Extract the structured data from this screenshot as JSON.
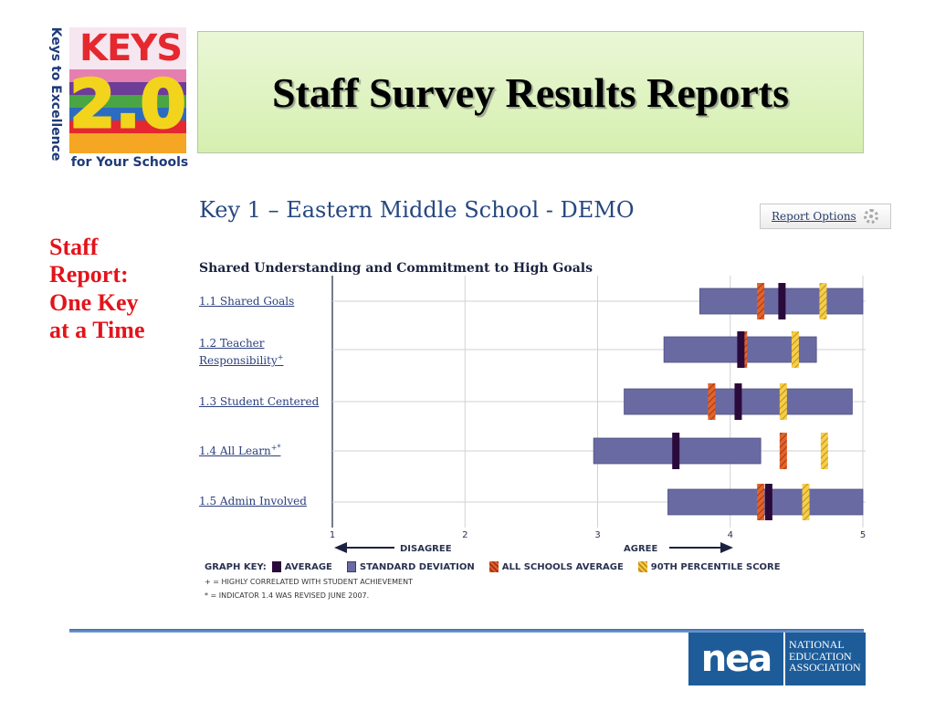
{
  "logo": {
    "side_text": "Keys to Excellence",
    "top_text": "KEYS",
    "big_text": "2.0",
    "bottom_text": "for Your Schools"
  },
  "title": "Staff Survey Results Reports",
  "side_caption": [
    "Staff",
    "Report:",
    "One Key",
    "at a Time"
  ],
  "report": {
    "title": "Key 1 – Eastern Middle School - DEMO",
    "options_label": "Report Options",
    "options_icon": "gear-icon"
  },
  "chart_data": {
    "type": "bar",
    "title": "Shared Understanding and Commitment to High Goals",
    "orientation": "horizontal",
    "xlim": [
      1,
      5
    ],
    "xticks": [
      "1",
      "2",
      "3",
      "4",
      "5"
    ],
    "grid": true,
    "direction_labels": {
      "left": "DISAGREE",
      "right": "AGREE"
    },
    "rows": [
      {
        "label": "1.1 Shared Goals",
        "marker": "",
        "sd_low": 3.77,
        "sd_high": 5.0,
        "average": 4.39,
        "all_schools_average": 4.23,
        "percentile_90": 4.7
      },
      {
        "label": "1.2 Teacher Responsibility",
        "marker": "+",
        "sd_low": 3.5,
        "sd_high": 4.65,
        "average": 4.08,
        "all_schools_average": 4.1,
        "percentile_90": 4.49
      },
      {
        "label": "1.3 Student Centered",
        "marker": "",
        "sd_low": 3.2,
        "sd_high": 4.92,
        "average": 4.06,
        "all_schools_average": 3.86,
        "percentile_90": 4.4
      },
      {
        "label": "1.4 All Learn",
        "marker": "+*",
        "sd_low": 2.97,
        "sd_high": 4.23,
        "average": 3.59,
        "all_schools_average": 4.4,
        "percentile_90": 4.71
      },
      {
        "label": "1.5 Admin Involved",
        "marker": "",
        "sd_low": 3.53,
        "sd_high": 5.0,
        "average": 4.29,
        "all_schools_average": 4.23,
        "percentile_90": 4.57
      }
    ],
    "legend": {
      "title": "GRAPH KEY:",
      "items": [
        "AVERAGE",
        "STANDARD DEVIATION",
        "ALL SCHOOLS AVERAGE",
        "90TH PERCENTILE SCORE"
      ]
    },
    "footnotes": [
      "+ = HIGHLY CORRELATED WITH STUDENT ACHIEVEMENT",
      "* = INDICATOR 1.4 WAS REVISED JUNE 2007."
    ]
  },
  "colors": {
    "title_red": "#e3141b",
    "average": "#2a0a3a",
    "standard_deviation": "#6a6aa3",
    "all_schools_average": "#e0642a",
    "percentile_90": "#eec23a",
    "link_blue": "#2b3f7e"
  },
  "nea": {
    "mark": "nea",
    "lines": [
      "NATIONAL",
      "EDUCATION",
      "ASSOCIATION"
    ]
  }
}
